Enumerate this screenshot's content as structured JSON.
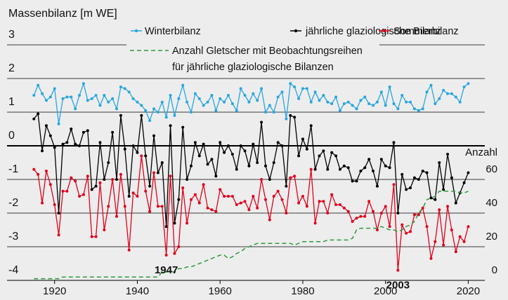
{
  "chart_data": {
    "type": "line",
    "ylabel": "Massenbilanz [m WE]",
    "y2label": "Anzahl",
    "x": [
      1915,
      1916,
      1917,
      1918,
      1919,
      1920,
      1921,
      1922,
      1923,
      1924,
      1925,
      1926,
      1927,
      1928,
      1929,
      1930,
      1931,
      1932,
      1933,
      1934,
      1935,
      1936,
      1937,
      1938,
      1939,
      1940,
      1941,
      1942,
      1943,
      1944,
      1945,
      1946,
      1947,
      1948,
      1949,
      1950,
      1951,
      1952,
      1953,
      1954,
      1955,
      1956,
      1957,
      1958,
      1959,
      1960,
      1961,
      1962,
      1963,
      1964,
      1965,
      1966,
      1967,
      1968,
      1969,
      1970,
      1971,
      1972,
      1973,
      1974,
      1975,
      1976,
      1977,
      1978,
      1979,
      1980,
      1981,
      1982,
      1983,
      1984,
      1985,
      1986,
      1987,
      1988,
      1989,
      1990,
      1991,
      1992,
      1993,
      1994,
      1995,
      1996,
      1997,
      1998,
      1999,
      2000,
      2001,
      2002,
      2003,
      2004,
      2005,
      2006,
      2007,
      2008,
      2009,
      2010,
      2011,
      2012,
      2013,
      2014,
      2015,
      2016,
      2017,
      2018,
      2019,
      2020
    ],
    "series": [
      {
        "name": "Winterbilanz",
        "color": "#27a6df",
        "values": [
          1.5,
          1.8,
          1.55,
          1.35,
          1.45,
          1.7,
          0.65,
          1.4,
          1.45,
          1.45,
          1.1,
          1.5,
          1.85,
          1.35,
          1.4,
          1.5,
          1.2,
          1.5,
          1.3,
          1.4,
          1.1,
          1.75,
          1.7,
          1.6,
          1.4,
          1.3,
          1.2,
          1.05,
          0.75,
          1.1,
          1.0,
          1.3,
          0.85,
          1.5,
          0.9,
          1.4,
          1.8,
          1.3,
          1.0,
          1.55,
          1.4,
          1.2,
          1.3,
          1.5,
          1.05,
          1.4,
          1.3,
          1.5,
          1.25,
          1.05,
          1.7,
          1.5,
          1.3,
          1.55,
          1.35,
          1.7,
          1.0,
          1.2,
          1.0,
          1.45,
          1.6,
          0.8,
          1.85,
          1.75,
          1.4,
          1.7,
          1.7,
          1.3,
          1.6,
          1.35,
          1.5,
          1.3,
          1.25,
          1.45,
          1.05,
          1.25,
          1.3,
          1.2,
          1.1,
          1.35,
          1.45,
          1.25,
          1.2,
          1.3,
          1.6,
          1.2,
          1.75,
          1.25,
          1.1,
          1.5,
          1.3,
          1.3,
          1.1,
          1.05,
          1.1,
          1.6,
          1.8,
          1.25,
          1.4,
          1.65,
          1.55,
          1.55,
          1.45,
          1.3,
          1.75,
          1.85
        ]
      },
      {
        "name": "jährliche glaziologische Bilanz",
        "color": "#000000",
        "values": [
          0.8,
          0.95,
          -0.15,
          0.6,
          0.3,
          -0.05,
          -2.0,
          0.05,
          0.1,
          0.5,
          0.05,
          0.0,
          0.4,
          0.45,
          -1.3,
          -1.2,
          0.1,
          -1.0,
          -0.5,
          0.4,
          -1.0,
          0.9,
          -0.1,
          -1.5,
          0.0,
          -0.2,
          0.9,
          -0.3,
          -1.2,
          0.3,
          -0.8,
          -0.5,
          -2.4,
          0.6,
          -2.3,
          -1.6,
          0.55,
          -1.0,
          -0.6,
          0.1,
          -0.3,
          0.05,
          -0.55,
          -0.4,
          -0.9,
          0.1,
          -0.2,
          0.0,
          -0.25,
          -0.7,
          0.0,
          -0.15,
          -0.6,
          0.05,
          -0.5,
          0.7,
          -0.6,
          -1.0,
          -0.5,
          0.1,
          0.0,
          -1.2,
          0.9,
          0.85,
          -0.3,
          0.2,
          -0.1,
          0.6,
          -0.7,
          -0.3,
          -0.15,
          -0.7,
          -0.2,
          -0.3,
          -0.7,
          -0.6,
          -0.65,
          -1.05,
          -1.05,
          -0.75,
          -0.65,
          -0.4,
          -0.75,
          -1.2,
          -0.4,
          -0.6,
          -0.65,
          0.1,
          -2.0,
          -0.85,
          -1.3,
          -1.25,
          -0.95,
          -1.0,
          -0.75,
          -0.8,
          -1.55,
          -1.6,
          -0.5,
          -1.3,
          -0.25,
          -0.95,
          -1.7,
          -1.4,
          -1.1,
          -0.8
        ]
      },
      {
        "name": "Sommerbilanz",
        "color": "#e2001a",
        "values": [
          -0.7,
          -0.85,
          -1.7,
          -0.75,
          -1.15,
          -1.75,
          -2.65,
          -1.35,
          -1.35,
          -0.95,
          -1.05,
          -1.5,
          -1.45,
          -0.9,
          -2.7,
          -2.7,
          -1.1,
          -2.5,
          -1.8,
          -1.0,
          -2.1,
          -0.85,
          -1.8,
          -3.1,
          -1.4,
          -1.5,
          -0.3,
          -1.35,
          -1.95,
          -0.8,
          -1.8,
          -1.8,
          -3.25,
          -0.9,
          -3.2,
          -3.0,
          -1.25,
          -2.3,
          -1.6,
          -1.45,
          -1.7,
          -1.15,
          -1.85,
          -1.9,
          -1.95,
          -1.3,
          -1.5,
          -1.5,
          -1.5,
          -1.75,
          -1.7,
          -1.65,
          -1.9,
          -1.5,
          -1.85,
          -1.0,
          -1.6,
          -2.2,
          -1.5,
          -1.35,
          -1.6,
          -2.0,
          -0.95,
          -0.9,
          -1.7,
          -1.5,
          -1.8,
          -0.7,
          -2.3,
          -1.65,
          -1.65,
          -2.0,
          -1.45,
          -1.75,
          -1.75,
          -1.85,
          -1.95,
          -2.25,
          -2.15,
          -2.1,
          -2.1,
          -1.65,
          -1.95,
          -2.5,
          -2.0,
          -1.8,
          -2.4,
          -1.15,
          -3.7,
          -2.35,
          -2.6,
          -2.55,
          -2.05,
          -2.05,
          -1.85,
          -2.4,
          -3.35,
          -2.85,
          -1.9,
          -2.95,
          -1.8,
          -2.5,
          -3.15,
          -2.7,
          -2.85,
          -2.4
        ]
      },
      {
        "name": "Anzahl Gletscher mit Beobachtungsreihen für jährliche glaziologische Bilanzen",
        "color": "#2f9a3c",
        "dashed": true,
        "axis": "y2",
        "values": [
          1,
          1,
          1,
          1,
          1,
          1,
          1,
          2,
          2,
          2,
          2,
          2,
          2,
          2,
          2,
          2,
          2,
          2,
          2,
          2,
          2,
          2,
          2,
          2,
          2,
          2,
          2,
          2,
          2,
          2,
          2,
          5,
          5,
          5,
          5,
          7,
          7,
          8,
          8,
          9,
          10,
          11,
          12,
          13,
          14,
          15,
          15,
          13,
          14,
          16,
          17,
          19,
          20,
          21,
          22,
          22,
          22,
          22,
          22,
          22,
          22,
          22,
          22,
          21,
          22,
          23,
          23,
          23,
          23,
          23,
          23,
          24,
          24,
          24,
          24,
          24,
          24,
          25,
          30,
          31,
          31,
          31,
          31,
          31,
          32,
          31,
          30,
          30,
          29,
          30,
          32,
          33,
          35,
          40,
          43,
          48,
          49,
          50,
          53,
          53,
          53,
          53,
          53,
          52,
          52,
          53
        ]
      }
    ],
    "xlim": [
      1908.5,
      2024
    ],
    "xticks": [
      1920,
      1940,
      1960,
      1980,
      2000,
      2020
    ],
    "ylim": [
      -4,
      3
    ],
    "yticks": [
      -4,
      -3,
      -2,
      -1,
      0,
      1,
      2,
      3
    ],
    "y2lim": [
      0,
      140
    ],
    "y2ticks": [
      0,
      20,
      40,
      60
    ],
    "annotations": [
      "1947",
      "2003"
    ]
  }
}
